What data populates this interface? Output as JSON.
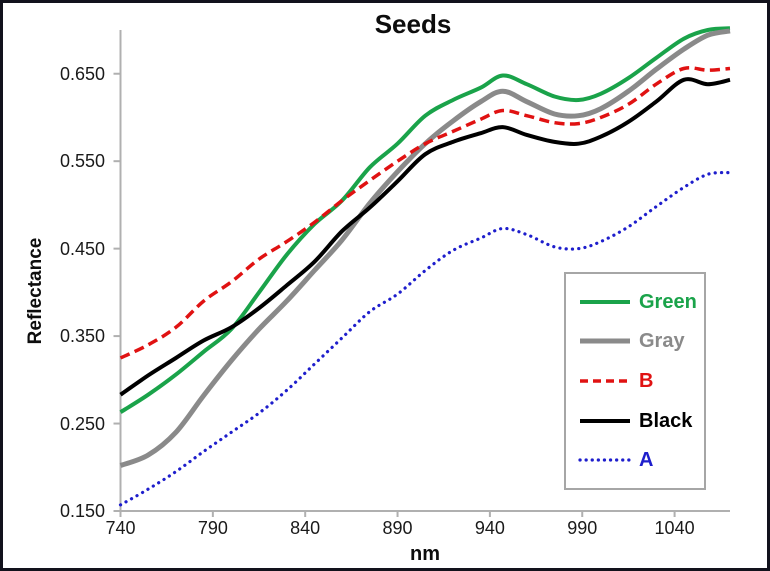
{
  "title": "Seeds",
  "colors": {
    "axis": "#b0b0b0",
    "frame_border": "#12121c",
    "tick_text": "#1a1a1a",
    "background": "#ffffff",
    "legend_border": "#a6a6a6"
  },
  "chart_data": {
    "type": "line",
    "title": "Seeds",
    "xlabel": "nm",
    "ylabel": "Reflectance",
    "xlim": [
      740,
      1070
    ],
    "ylim": [
      0.15,
      0.7
    ],
    "grid": false,
    "legend_position": "inside-lower-right",
    "xticks": [
      740,
      790,
      840,
      890,
      940,
      990,
      1040
    ],
    "yticks": [
      {
        "value": 0.65,
        "label": "0.650"
      },
      {
        "value": 0.55,
        "label": "0.550"
      },
      {
        "value": 0.45,
        "label": "0.450"
      },
      {
        "value": 0.35,
        "label": "0.350"
      },
      {
        "value": 0.25,
        "label": "0.250"
      },
      {
        "value": 0.15,
        "label": "0.150"
      }
    ],
    "x": [
      740,
      755,
      770,
      785,
      800,
      815,
      830,
      845,
      860,
      875,
      890,
      905,
      920,
      935,
      947,
      960,
      975,
      988,
      1000,
      1015,
      1030,
      1045,
      1058,
      1070
    ],
    "series": [
      {
        "name": "Green",
        "color": "#1aa34a",
        "style": "solid",
        "width": 4,
        "values": [
          0.263,
          0.283,
          0.306,
          0.332,
          0.358,
          0.4,
          0.443,
          0.478,
          0.505,
          0.543,
          0.57,
          0.602,
          0.62,
          0.634,
          0.648,
          0.638,
          0.624,
          0.62,
          0.627,
          0.645,
          0.668,
          0.69,
          0.7,
          0.702
        ]
      },
      {
        "name": "Gray",
        "color": "#8a8a8a",
        "style": "solid",
        "width": 5,
        "values": [
          0.202,
          0.214,
          0.24,
          0.282,
          0.322,
          0.358,
          0.39,
          0.425,
          0.46,
          0.502,
          0.538,
          0.57,
          0.596,
          0.618,
          0.63,
          0.618,
          0.604,
          0.602,
          0.61,
          0.63,
          0.655,
          0.678,
          0.694,
          0.699
        ]
      },
      {
        "name": "B",
        "color": "#e01212",
        "style": "dashed",
        "width": 3.5,
        "values": [
          0.325,
          0.34,
          0.36,
          0.39,
          0.412,
          0.438,
          0.458,
          0.48,
          0.505,
          0.528,
          0.55,
          0.57,
          0.584,
          0.598,
          0.608,
          0.602,
          0.594,
          0.593,
          0.6,
          0.615,
          0.638,
          0.656,
          0.654,
          0.656
        ]
      },
      {
        "name": "Black",
        "color": "#000000",
        "style": "solid",
        "width": 4,
        "values": [
          0.283,
          0.305,
          0.325,
          0.345,
          0.36,
          0.382,
          0.408,
          0.435,
          0.47,
          0.497,
          0.527,
          0.558,
          0.572,
          0.582,
          0.589,
          0.58,
          0.572,
          0.57,
          0.578,
          0.595,
          0.618,
          0.643,
          0.638,
          0.643
        ]
      },
      {
        "name": "A",
        "color": "#1e1ecc",
        "style": "dotted",
        "width": 3.2,
        "values": [
          0.157,
          0.175,
          0.195,
          0.218,
          0.24,
          0.262,
          0.288,
          0.318,
          0.348,
          0.378,
          0.398,
          0.425,
          0.448,
          0.462,
          0.473,
          0.466,
          0.452,
          0.45,
          0.458,
          0.475,
          0.498,
          0.52,
          0.535,
          0.537
        ]
      }
    ]
  }
}
